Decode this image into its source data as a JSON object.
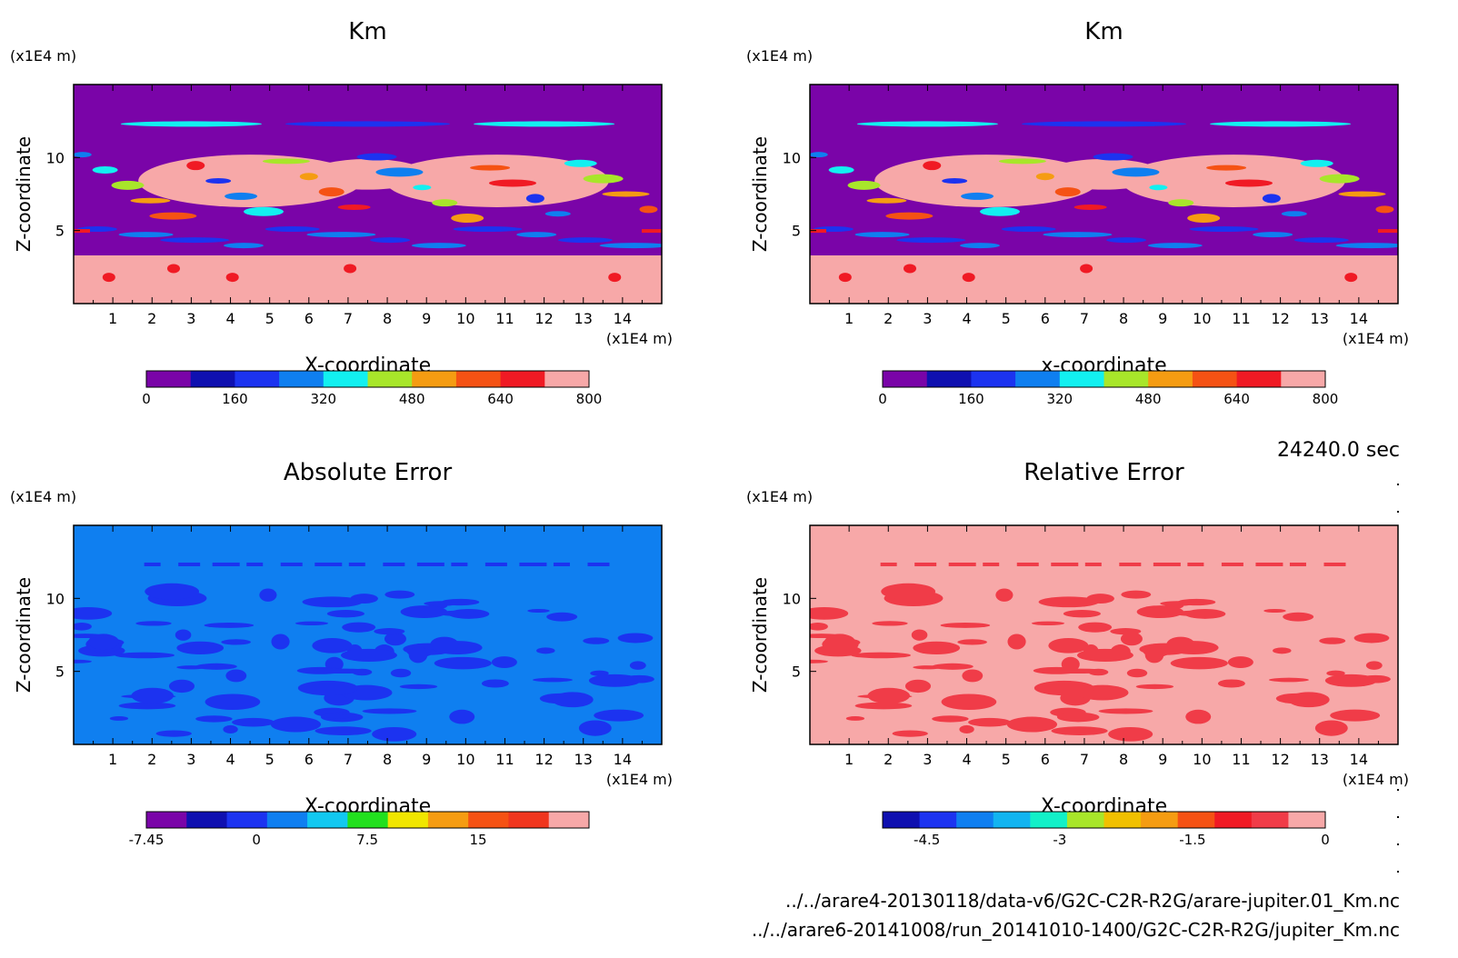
{
  "time_label": "24240.0 sec",
  "files": [
    "../../arare4-20130118/data-v6/G2C-C2R-R2G/arare-jupiter.01_Km.nc",
    "../../arare6-20141008/run_20141010-1400/G2C-C2R-R2G/jupiter_Km.nc"
  ],
  "chart_data": [
    {
      "type": "heatmap",
      "title": "Km",
      "xlabel": "X-coordinate",
      "ylabel": "Z-coordinate",
      "x_unit": "(x1E4 m)",
      "y_unit": "(x1E4 m)",
      "xlim": [
        0,
        15
      ],
      "ylim": [
        0,
        15
      ],
      "x_ticks": [
        "1",
        "2",
        "3",
        "4",
        "5",
        "6",
        "7",
        "8",
        "9",
        "10",
        "11",
        "12",
        "13",
        "14"
      ],
      "y_ticks": [
        "5",
        "10"
      ],
      "pattern": "km",
      "colorbar": {
        "min": 0,
        "max": 800,
        "labels": [
          "0",
          "160",
          "320",
          "480",
          "640",
          "800"
        ],
        "colors": [
          "#7a04a8",
          "#0f10b0",
          "#1c33f0",
          "#0f7ff0",
          "#12f0f0",
          "#a8e62a",
          "#f59c12",
          "#f55214",
          "#f01a24",
          "#f7a8a8"
        ]
      }
    },
    {
      "type": "heatmap",
      "title": "Km",
      "xlabel": "x-coordinate",
      "ylabel": "Z-coordinate",
      "x_unit": "(x1E4 m)",
      "y_unit": "(x1E4 m)",
      "xlim": [
        0,
        15
      ],
      "ylim": [
        0,
        15
      ],
      "x_ticks": [
        "1",
        "2",
        "3",
        "4",
        "5",
        "6",
        "7",
        "8",
        "9",
        "10",
        "11",
        "12",
        "13",
        "14"
      ],
      "y_ticks": [
        "5",
        "10"
      ],
      "pattern": "km",
      "colorbar": {
        "min": 0,
        "max": 800,
        "labels": [
          "0",
          "160",
          "320",
          "480",
          "640",
          "800"
        ],
        "colors": [
          "#7a04a8",
          "#0f10b0",
          "#1c33f0",
          "#0f7ff0",
          "#12f0f0",
          "#a8e62a",
          "#f59c12",
          "#f55214",
          "#f01a24",
          "#f7a8a8"
        ]
      }
    },
    {
      "type": "heatmap",
      "title": "Absolute Error",
      "xlabel": "X-coordinate",
      "ylabel": "Z-coordinate",
      "x_unit": "(x1E4 m)",
      "y_unit": "(x1E4 m)",
      "xlim": [
        0,
        15
      ],
      "ylim": [
        0,
        15
      ],
      "x_ticks": [
        "1",
        "2",
        "3",
        "4",
        "5",
        "6",
        "7",
        "8",
        "9",
        "10",
        "11",
        "12",
        "13",
        "14"
      ],
      "y_ticks": [
        "5",
        "10"
      ],
      "pattern": "abs",
      "colorbar": {
        "min": -7.45,
        "max": 22.5,
        "labels": [
          "-7.45",
          "0",
          "7.5",
          "15"
        ],
        "colors": [
          "#7a04a8",
          "#0f10b0",
          "#1c33f0",
          "#0f7ff0",
          "#12c8f0",
          "#22e01e",
          "#f0e600",
          "#f59c12",
          "#f55214",
          "#f0361e",
          "#f7a8a8"
        ]
      }
    },
    {
      "type": "heatmap",
      "title": "Relative Error",
      "xlabel": "X-coordinate",
      "ylabel": "Z-coordinate",
      "x_unit": "(x1E4 m)",
      "y_unit": "(x1E4 m)",
      "xlim": [
        0,
        15
      ],
      "ylim": [
        0,
        15
      ],
      "x_ticks": [
        "1",
        "2",
        "3",
        "4",
        "5",
        "6",
        "7",
        "8",
        "9",
        "10",
        "11",
        "12",
        "13",
        "14"
      ],
      "y_ticks": [
        "5",
        "10"
      ],
      "pattern": "rel",
      "colorbar": {
        "min": -5,
        "max": 0,
        "labels": [
          "-4.5",
          "-3",
          "-1.5",
          "0"
        ],
        "colors": [
          "#0f10b0",
          "#1c33f0",
          "#0f7ff0",
          "#12b4f0",
          "#12f0c8",
          "#a8e62a",
          "#f0c000",
          "#f59c12",
          "#f55214",
          "#f01a24",
          "#f03c48",
          "#f7a8a8"
        ]
      }
    }
  ]
}
